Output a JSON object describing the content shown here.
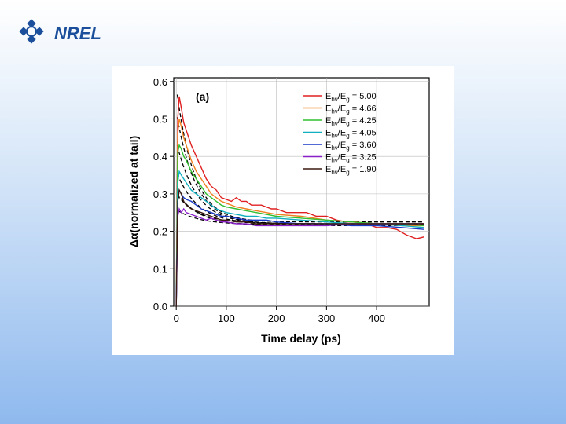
{
  "logo": {
    "text": "NREL"
  },
  "chart_data": {
    "type": "line",
    "panel_label": "(a)",
    "xlabel": "Time delay (ps)",
    "ylabel": "Δα(normalized at tail)",
    "xlim": [
      -5,
      505
    ],
    "ylim": [
      0.0,
      0.61
    ],
    "xticks": [
      0,
      100,
      200,
      300,
      400
    ],
    "xtick_labels": [
      "0",
      "100",
      "200",
      "300",
      "400"
    ],
    "yticks": [
      0.0,
      0.1,
      0.2,
      0.3,
      0.4,
      0.5,
      0.6
    ],
    "ytick_labels": [
      "0.0",
      "0.1",
      "0.2",
      "0.3",
      "0.4",
      "0.5",
      "0.6"
    ],
    "legend_position": "top-right",
    "fit_style": "dashed black",
    "series": [
      {
        "name": "Ehν/Eg = 5.00",
        "label_prefix": "E",
        "label_sub1": "hν",
        "label_mid": "/E",
        "label_sub2": "g",
        "label_value": " = 5.00",
        "color": "#e02020",
        "x": [
          0,
          3,
          6,
          10,
          15,
          20,
          30,
          40,
          50,
          60,
          70,
          80,
          90,
          100,
          110,
          120,
          130,
          140,
          150,
          160,
          170,
          180,
          190,
          200,
          220,
          240,
          260,
          280,
          300,
          320,
          340,
          360,
          380,
          400,
          420,
          440,
          460,
          480,
          495
        ],
        "y": [
          0.0,
          0.5,
          0.56,
          0.53,
          0.49,
          0.47,
          0.43,
          0.4,
          0.37,
          0.34,
          0.32,
          0.31,
          0.29,
          0.285,
          0.28,
          0.29,
          0.28,
          0.28,
          0.27,
          0.27,
          0.27,
          0.265,
          0.26,
          0.26,
          0.25,
          0.25,
          0.25,
          0.24,
          0.24,
          0.23,
          0.225,
          0.225,
          0.22,
          0.21,
          0.21,
          0.205,
          0.19,
          0.18,
          0.185
        ]
      },
      {
        "name": "Ehν/Eg = 4.66",
        "label_prefix": "E",
        "label_sub1": "hν",
        "label_mid": "/E",
        "label_sub2": "g",
        "label_value": " = 4.66",
        "color": "#f08020",
        "x": [
          0,
          3,
          6,
          10,
          15,
          20,
          30,
          40,
          50,
          60,
          70,
          80,
          90,
          100,
          120,
          140,
          160,
          180,
          200,
          250,
          300,
          350,
          400,
          450,
          495
        ],
        "y": [
          0.0,
          0.46,
          0.5,
          0.48,
          0.45,
          0.43,
          0.39,
          0.36,
          0.34,
          0.32,
          0.3,
          0.29,
          0.28,
          0.275,
          0.265,
          0.26,
          0.255,
          0.25,
          0.245,
          0.24,
          0.23,
          0.225,
          0.22,
          0.215,
          0.215
        ]
      },
      {
        "name": "Ehν/Eg = 4.25",
        "label_prefix": "E",
        "label_sub1": "hν",
        "label_mid": "/E",
        "label_sub2": "g",
        "label_value": " = 4.25",
        "color": "#30c030",
        "x": [
          0,
          3,
          6,
          10,
          15,
          20,
          30,
          40,
          50,
          60,
          70,
          80,
          90,
          100,
          120,
          140,
          160,
          180,
          200,
          250,
          300,
          350,
          400,
          450,
          495
        ],
        "y": [
          0.0,
          0.41,
          0.43,
          0.42,
          0.4,
          0.39,
          0.36,
          0.34,
          0.32,
          0.3,
          0.29,
          0.28,
          0.27,
          0.265,
          0.26,
          0.255,
          0.25,
          0.245,
          0.24,
          0.235,
          0.23,
          0.225,
          0.22,
          0.22,
          0.215
        ]
      },
      {
        "name": "Ehν/Eg = 4.05",
        "label_prefix": "E",
        "label_sub1": "hν",
        "label_mid": "/E",
        "label_sub2": "g",
        "label_value": " = 4.05",
        "color": "#10b0c0",
        "x": [
          0,
          3,
          6,
          10,
          15,
          20,
          30,
          40,
          50,
          60,
          70,
          80,
          90,
          100,
          120,
          140,
          160,
          180,
          200,
          250,
          300,
          350,
          400,
          450,
          495
        ],
        "y": [
          0.0,
          0.33,
          0.36,
          0.35,
          0.34,
          0.33,
          0.31,
          0.3,
          0.29,
          0.28,
          0.27,
          0.26,
          0.255,
          0.25,
          0.245,
          0.24,
          0.24,
          0.235,
          0.235,
          0.23,
          0.225,
          0.22,
          0.22,
          0.215,
          0.21
        ]
      },
      {
        "name": "Ehν/Eg = 3.60",
        "label_prefix": "E",
        "label_sub1": "hν",
        "label_mid": "/E",
        "label_sub2": "g",
        "label_value": " = 3.60",
        "color": "#1838c8",
        "x": [
          0,
          3,
          6,
          10,
          15,
          20,
          30,
          40,
          50,
          60,
          70,
          80,
          90,
          100,
          120,
          140,
          160,
          180,
          200,
          250,
          300,
          350,
          400,
          450,
          495
        ],
        "y": [
          0.0,
          0.28,
          0.31,
          0.3,
          0.29,
          0.285,
          0.28,
          0.27,
          0.26,
          0.255,
          0.25,
          0.245,
          0.24,
          0.24,
          0.235,
          0.23,
          0.23,
          0.23,
          0.225,
          0.22,
          0.22,
          0.215,
          0.215,
          0.21,
          0.205
        ]
      },
      {
        "name": "Ehν/Eg = 3.25",
        "label_prefix": "E",
        "label_sub1": "hν",
        "label_mid": "/E",
        "label_sub2": "g",
        "label_value": " = 3.25",
        "color": "#8a20c8",
        "x": [
          0,
          3,
          6,
          10,
          15,
          20,
          30,
          40,
          50,
          60,
          70,
          80,
          90,
          100,
          120,
          140,
          160,
          180,
          200,
          250,
          300,
          350,
          400,
          450,
          495
        ],
        "y": [
          0.0,
          0.24,
          0.26,
          0.25,
          0.26,
          0.25,
          0.245,
          0.24,
          0.235,
          0.23,
          0.235,
          0.23,
          0.225,
          0.225,
          0.22,
          0.22,
          0.215,
          0.215,
          0.215,
          0.215,
          0.215,
          0.22,
          0.22,
          0.22,
          0.22
        ]
      },
      {
        "name": "Ehν/Eg = 1.90",
        "label_prefix": "E",
        "label_sub1": "hν",
        "label_mid": "/E",
        "label_sub2": "g",
        "label_value": " = 1.90",
        "color": "#3a1a10",
        "x": [
          0,
          3,
          6,
          10,
          15,
          20,
          30,
          40,
          50,
          60,
          70,
          80,
          90,
          100,
          120,
          140,
          160,
          180,
          200,
          250,
          300,
          350,
          400,
          450,
          495
        ],
        "y": [
          0.0,
          0.28,
          0.31,
          0.3,
          0.28,
          0.27,
          0.26,
          0.255,
          0.25,
          0.245,
          0.24,
          0.235,
          0.23,
          0.23,
          0.225,
          0.225,
          0.22,
          0.22,
          0.22,
          0.22,
          0.22,
          0.22,
          0.22,
          0.22,
          0.22
        ]
      }
    ],
    "fits": [
      {
        "asymptote": 0.225,
        "amplitude": 0.36,
        "tau": 35
      },
      {
        "asymptote": 0.22,
        "amplitude": 0.3,
        "tau": 38
      },
      {
        "asymptote": 0.22,
        "amplitude": 0.22,
        "tau": 40
      },
      {
        "asymptote": 0.22,
        "amplitude": 0.14,
        "tau": 42
      },
      {
        "asymptote": 0.215,
        "amplitude": 0.09,
        "tau": 45
      },
      {
        "asymptote": 0.218,
        "amplitude": 0.04,
        "tau": 45
      },
      {
        "asymptote": 0.22,
        "amplitude": 0.08,
        "tau": 45
      }
    ]
  }
}
